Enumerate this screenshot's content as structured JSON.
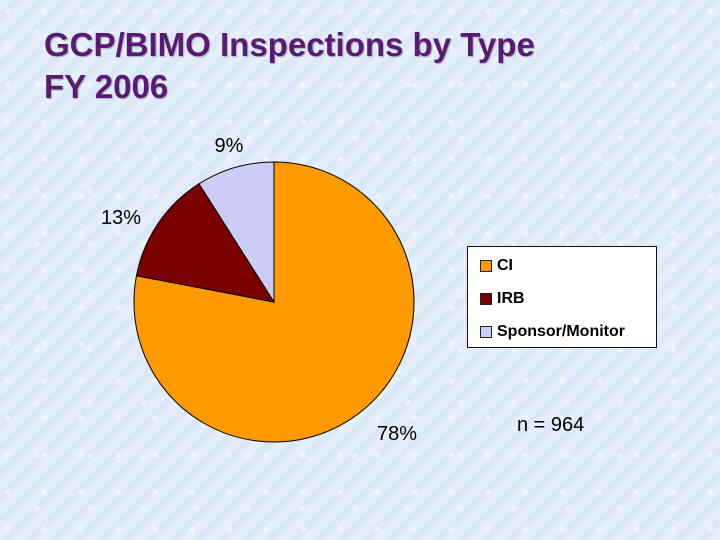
{
  "title": {
    "line1": "GCP/BIMO Inspections by Type",
    "line2": "FY 2006"
  },
  "note": "n = 964",
  "colors": {
    "title": "#5a1a73",
    "CI": "#ff9900",
    "IRB": "#7a0000",
    "Sponsor/Monitor": "#ccccf5"
  },
  "chart_data": {
    "type": "pie",
    "slices": [
      {
        "name": "CI",
        "value": 78,
        "label": "78%",
        "color": "#ff9900"
      },
      {
        "name": "IRB",
        "value": 13,
        "label": "13%",
        "color": "#7a0000"
      },
      {
        "name": "Sponsor/Monitor",
        "value": 9,
        "label": "9%",
        "color": "#ccccf5"
      }
    ],
    "legend": [
      "CI",
      "IRB",
      "Sponsor/Monitor"
    ],
    "legend_position": "right"
  }
}
